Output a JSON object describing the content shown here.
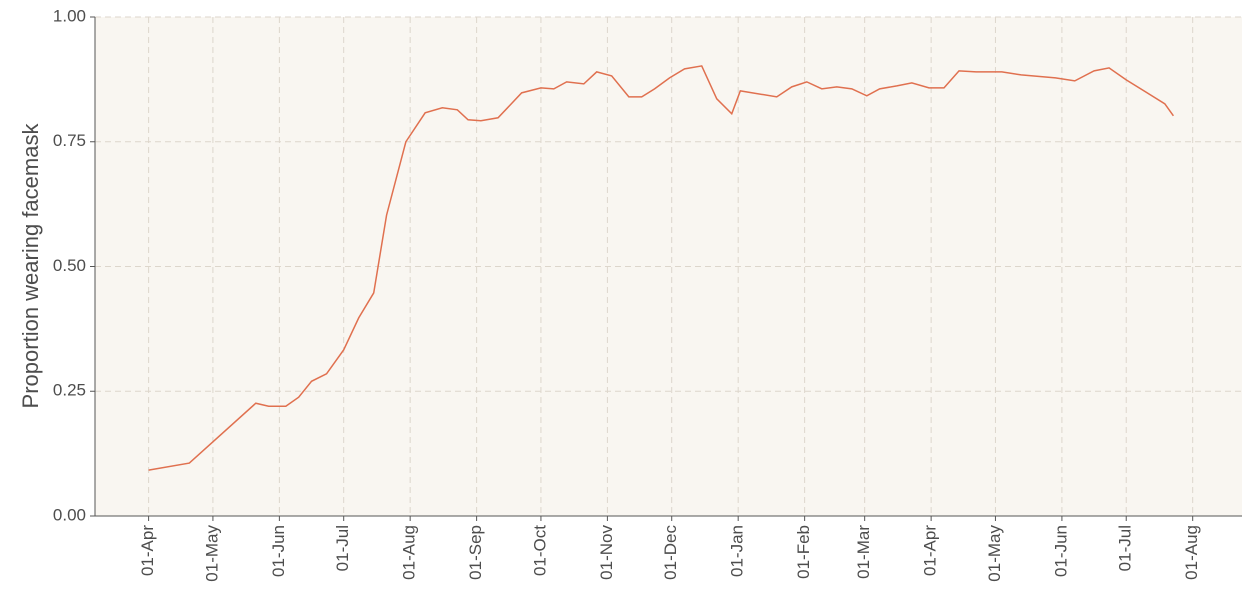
{
  "chart_data": {
    "type": "line",
    "y_label": "Proportion wearing facemask",
    "x": [
      "01-Apr",
      "20-Apr",
      "21-May",
      "27-May",
      "04-Jun",
      "10-Jun",
      "16-Jun",
      "23-Jun",
      "01-Jul",
      "08-Jul",
      "15-Jul",
      "21-Jul",
      "30-Jul",
      "08-Aug",
      "16-Aug",
      "23-Aug",
      "28-Aug",
      "03-Sep",
      "11-Sep",
      "22-Sep",
      "01-Oct",
      "07-Oct",
      "13-Oct",
      "21-Oct",
      "27-Oct",
      "03-Nov",
      "11-Nov",
      "17-Nov",
      "23-Nov",
      "30-Nov",
      "07-Dec",
      "15-Dec",
      "22-Dec",
      "29-Dec",
      "02-Jan",
      "19-Jan",
      "26-Jan",
      "02-Feb",
      "09-Feb",
      "16-Feb",
      "23-Feb",
      "02-Mar",
      "08-Mar",
      "16-Mar",
      "23-Mar",
      "31-Mar",
      "07-Apr",
      "14-Apr",
      "22-Apr",
      "04-May",
      "13-May",
      "29-May",
      "07-Jun",
      "16-Jun",
      "23-Jun",
      "01-Jul",
      "19-Jul",
      "23-Jul"
    ],
    "series": [
      {
        "name": "Proportion wearing facemask",
        "color": "#e0704f",
        "values": [
          0.092,
          0.106,
          0.226,
          0.22,
          0.22,
          0.238,
          0.27,
          0.285,
          0.333,
          0.397,
          0.447,
          0.603,
          0.75,
          0.808,
          0.818,
          0.814,
          0.794,
          0.792,
          0.798,
          0.848,
          0.858,
          0.856,
          0.87,
          0.866,
          0.89,
          0.882,
          0.84,
          0.84,
          0.856,
          0.878,
          0.896,
          0.902,
          0.836,
          0.806,
          0.852,
          0.84,
          0.86,
          0.87,
          0.856,
          0.86,
          0.856,
          0.842,
          0.856,
          0.862,
          0.868,
          0.858,
          0.858,
          0.892,
          0.89,
          0.89,
          0.884,
          0.878,
          0.872,
          0.892,
          0.898,
          0.874,
          0.826,
          0.802
        ]
      }
    ],
    "xlim": [
      "07-Mar",
      "24-Aug"
    ],
    "xticks": [
      "01-Apr",
      "01-May",
      "01-Jun",
      "01-Jul",
      "01-Aug",
      "01-Sep",
      "01-Oct",
      "01-Nov",
      "01-Dec",
      "01-Jan",
      "01-Feb",
      "01-Mar",
      "01-Apr",
      "01-May",
      "01-Jun",
      "01-Jul",
      "01-Aug"
    ],
    "ylim": [
      0,
      1
    ],
    "yticks": [
      {
        "value": 0,
        "label": "0.00"
      },
      {
        "value": 0.25,
        "label": "0.25"
      },
      {
        "value": 0.5,
        "label": "0.50"
      },
      {
        "value": 0.75,
        "label": "0.75"
      },
      {
        "value": 1,
        "label": "1.00"
      }
    ],
    "grid": true,
    "background": "#f9f6f1"
  }
}
